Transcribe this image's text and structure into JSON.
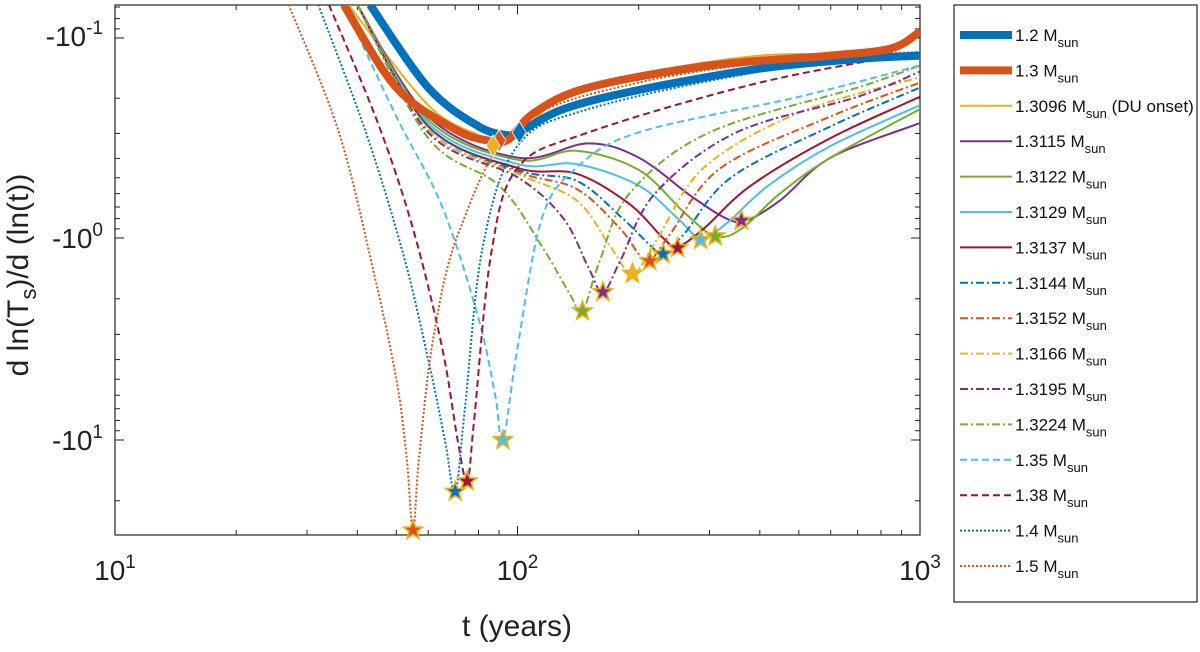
{
  "chart_data": {
    "type": "line",
    "xscale": "log",
    "xlim": [
      10,
      1000
    ],
    "ylabel_scale": "log (negative values)",
    "xlabel": "t (years)",
    "ylabel": "d ln(T_s)/d (ln(t))",
    "xticks": [
      {
        "value": 10,
        "base": "10",
        "exp": "1"
      },
      {
        "value": 100,
        "base": "10",
        "exp": "2"
      },
      {
        "value": 1000,
        "base": "10",
        "exp": "3"
      }
    ],
    "yticks": [
      {
        "value": -0.1,
        "base": "-10",
        "exp": "-1"
      },
      {
        "value": -1,
        "base": "-10",
        "exp": "0"
      },
      {
        "value": -10,
        "base": "-10",
        "exp": "1"
      }
    ],
    "legend_position": "outside-right",
    "series": [
      {
        "name": "1.2 M",
        "sub": "sun",
        "suffix": "",
        "color": "#0072BD",
        "style": "solid",
        "width": 8,
        "points": [
          [
            43,
            -0.07
          ],
          [
            60,
            -0.18
          ],
          [
            80,
            -0.28
          ],
          [
            95,
            -0.31
          ],
          [
            101,
            -0.3
          ],
          [
            130,
            -0.23
          ],
          [
            200,
            -0.185
          ],
          [
            400,
            -0.145
          ],
          [
            700,
            -0.13
          ],
          [
            1000,
            -0.125
          ]
        ],
        "marker": {
          "x": 101,
          "y": -0.3,
          "shape": "diamond",
          "color": "#0072BD"
        }
      },
      {
        "name": "1.3 M",
        "sub": "sun",
        "suffix": "",
        "color": "#D95319",
        "style": "solid",
        "width": 8,
        "points": [
          [
            37,
            -0.07
          ],
          [
            50,
            -0.18
          ],
          [
            70,
            -0.29
          ],
          [
            85,
            -0.33
          ],
          [
            95,
            -0.325
          ],
          [
            110,
            -0.24
          ],
          [
            150,
            -0.18
          ],
          [
            300,
            -0.14
          ],
          [
            600,
            -0.125
          ],
          [
            850,
            -0.115
          ],
          [
            1000,
            -0.095
          ]
        ],
        "marker": {
          "x": 90,
          "y": -0.33,
          "shape": "diamond",
          "color": "#D95319"
        }
      },
      {
        "name": "1.3096 M",
        "sub": "sun",
        "suffix": " (DU onset)",
        "color": "#EDB120",
        "style": "solid",
        "width": 2,
        "points": [
          [
            38,
            -0.07
          ],
          [
            60,
            -0.22
          ],
          [
            80,
            -0.31
          ],
          [
            88,
            -0.34
          ],
          [
            100,
            -0.31
          ],
          [
            130,
            -0.2
          ],
          [
            200,
            -0.155
          ],
          [
            400,
            -0.125
          ],
          [
            700,
            -0.125
          ],
          [
            1000,
            -0.13
          ]
        ],
        "marker": {
          "x": 87,
          "y": -0.35,
          "shape": "diamond",
          "color": "#EDB120"
        }
      },
      {
        "name": "1.3115 M",
        "sub": "sun",
        "suffix": "",
        "color": "#7E2F8E",
        "style": "solid",
        "width": 2,
        "points": [
          [
            40,
            -0.07
          ],
          [
            60,
            -0.25
          ],
          [
            100,
            -0.4
          ],
          [
            150,
            -0.34
          ],
          [
            200,
            -0.4
          ],
          [
            270,
            -0.62
          ],
          [
            330,
            -0.8
          ],
          [
            370,
            -0.82
          ],
          [
            450,
            -0.65
          ],
          [
            600,
            -0.4
          ],
          [
            1000,
            -0.27
          ]
        ],
        "marker": {
          "x": 360,
          "y": -0.82,
          "shape": "star",
          "color": "#7E2F8E"
        }
      },
      {
        "name": "1.3122 M",
        "sub": "sun",
        "suffix": "",
        "color": "#77AC30",
        "style": "solid",
        "width": 2,
        "points": [
          [
            40,
            -0.07
          ],
          [
            60,
            -0.26
          ],
          [
            100,
            -0.41
          ],
          [
            140,
            -0.37
          ],
          [
            200,
            -0.46
          ],
          [
            260,
            -0.75
          ],
          [
            310,
            -0.98
          ],
          [
            360,
            -0.9
          ],
          [
            450,
            -0.6
          ],
          [
            600,
            -0.4
          ],
          [
            1000,
            -0.23
          ]
        ],
        "marker": {
          "x": 310,
          "y": -0.98,
          "shape": "star",
          "color": "#77AC30"
        }
      },
      {
        "name": "1.3129 M",
        "sub": "sun",
        "suffix": "",
        "color": "#4DBEEE",
        "style": "solid",
        "width": 2,
        "points": [
          [
            40,
            -0.07
          ],
          [
            60,
            -0.27
          ],
          [
            100,
            -0.43
          ],
          [
            140,
            -0.43
          ],
          [
            200,
            -0.55
          ],
          [
            250,
            -0.8
          ],
          [
            285,
            -1.0
          ],
          [
            330,
            -0.85
          ],
          [
            420,
            -0.55
          ],
          [
            600,
            -0.35
          ],
          [
            1000,
            -0.22
          ]
        ],
        "marker": {
          "x": 285,
          "y": -1.02,
          "shape": "star",
          "color": "#4DBEEE"
        }
      },
      {
        "name": "1.3137 M",
        "sub": "sun",
        "suffix": "",
        "color": "#A2142F",
        "style": "solid",
        "width": 2,
        "points": [
          [
            40,
            -0.07
          ],
          [
            60,
            -0.28
          ],
          [
            100,
            -0.45
          ],
          [
            140,
            -0.48
          ],
          [
            190,
            -0.68
          ],
          [
            230,
            -1.0
          ],
          [
            250,
            -1.1
          ],
          [
            290,
            -0.9
          ],
          [
            380,
            -0.55
          ],
          [
            600,
            -0.32
          ],
          [
            1000,
            -0.2
          ]
        ],
        "marker": {
          "x": 250,
          "y": -1.12,
          "shape": "star",
          "color": "#A2142F"
        }
      },
      {
        "name": "1.3144 M",
        "sub": "sun",
        "suffix": "",
        "color": "#0072BD",
        "style": "dashdot",
        "width": 2,
        "points": [
          [
            40,
            -0.07
          ],
          [
            60,
            -0.28
          ],
          [
            100,
            -0.46
          ],
          [
            140,
            -0.52
          ],
          [
            180,
            -0.78
          ],
          [
            215,
            -1.1
          ],
          [
            230,
            -1.2
          ],
          [
            260,
            -0.95
          ],
          [
            340,
            -0.5
          ],
          [
            600,
            -0.28
          ],
          [
            1000,
            -0.18
          ]
        ],
        "marker": {
          "x": 230,
          "y": -1.2,
          "shape": "star",
          "color": "#0072BD"
        }
      },
      {
        "name": "1.3152 M",
        "sub": "sun",
        "suffix": "",
        "color": "#D95319",
        "style": "dashdot",
        "width": 2,
        "points": [
          [
            40,
            -0.07
          ],
          [
            60,
            -0.29
          ],
          [
            100,
            -0.47
          ],
          [
            140,
            -0.57
          ],
          [
            180,
            -0.9
          ],
          [
            200,
            -1.2
          ],
          [
            213,
            -1.3
          ],
          [
            240,
            -0.95
          ],
          [
            320,
            -0.45
          ],
          [
            600,
            -0.25
          ],
          [
            1000,
            -0.17
          ]
        ],
        "marker": {
          "x": 213,
          "y": -1.3,
          "shape": "star",
          "color": "#D95319"
        }
      },
      {
        "name": "1.3166 M",
        "sub": "sun",
        "suffix": "",
        "color": "#EDB120",
        "style": "dashdot",
        "width": 2,
        "points": [
          [
            40,
            -0.07
          ],
          [
            60,
            -0.29
          ],
          [
            100,
            -0.48
          ],
          [
            140,
            -0.65
          ],
          [
            170,
            -1.1
          ],
          [
            193,
            -1.5
          ],
          [
            220,
            -1.05
          ],
          [
            290,
            -0.45
          ],
          [
            500,
            -0.24
          ],
          [
            1000,
            -0.16
          ]
        ],
        "marker": {
          "x": 193,
          "y": -1.5,
          "shape": "star",
          "color": "#EDB120"
        }
      },
      {
        "name": "1.3195 M",
        "sub": "sun",
        "suffix": "",
        "color": "#7E2F8E",
        "style": "dashdot",
        "width": 2,
        "points": [
          [
            40,
            -0.07
          ],
          [
            60,
            -0.3
          ],
          [
            100,
            -0.5
          ],
          [
            130,
            -0.8
          ],
          [
            150,
            -1.4
          ],
          [
            163,
            -1.85
          ],
          [
            180,
            -1.3
          ],
          [
            220,
            -0.6
          ],
          [
            350,
            -0.3
          ],
          [
            700,
            -0.2
          ],
          [
            1000,
            -0.15
          ]
        ],
        "marker": {
          "x": 163,
          "y": -1.85,
          "shape": "star",
          "color": "#7E2F8E"
        }
      },
      {
        "name": "1.3224 M",
        "sub": "sun",
        "suffix": "",
        "color": "#77AC30",
        "style": "dashdot",
        "width": 2,
        "points": [
          [
            40,
            -0.07
          ],
          [
            60,
            -0.32
          ],
          [
            90,
            -0.55
          ],
          [
            115,
            -1.1
          ],
          [
            135,
            -1.9
          ],
          [
            145,
            -2.3
          ],
          [
            160,
            -1.3
          ],
          [
            190,
            -0.6
          ],
          [
            300,
            -0.3
          ],
          [
            700,
            -0.18
          ],
          [
            1000,
            -0.14
          ]
        ],
        "marker": {
          "x": 145,
          "y": -2.3,
          "shape": "star",
          "color": "#77AC30"
        }
      },
      {
        "name": "1.35 M",
        "sub": "sun",
        "suffix": "",
        "color": "#4DBEEE",
        "style": "dashed",
        "width": 2,
        "points": [
          [
            37,
            -0.07
          ],
          [
            50,
            -0.25
          ],
          [
            65,
            -0.7
          ],
          [
            80,
            -2.5
          ],
          [
            88,
            -6
          ],
          [
            92,
            -10
          ],
          [
            100,
            -3.5
          ],
          [
            115,
            -0.8
          ],
          [
            140,
            -0.45
          ],
          [
            200,
            -0.3
          ],
          [
            500,
            -0.2
          ],
          [
            1000,
            -0.14
          ]
        ],
        "marker": {
          "x": 92,
          "y": -10,
          "shape": "star",
          "color": "#4DBEEE"
        }
      },
      {
        "name": "1.38 M",
        "sub": "sun",
        "suffix": "",
        "color": "#A2142F",
        "style": "dashed",
        "width": 2,
        "points": [
          [
            34,
            -0.07
          ],
          [
            45,
            -0.27
          ],
          [
            55,
            -0.9
          ],
          [
            65,
            -3.5
          ],
          [
            71,
            -10
          ],
          [
            75,
            -16
          ],
          [
            78,
            -8
          ],
          [
            86,
            -1.2
          ],
          [
            100,
            -0.45
          ],
          [
            150,
            -0.3
          ],
          [
            400,
            -0.17
          ],
          [
            1000,
            -0.12
          ]
        ],
        "marker": {
          "x": 75,
          "y": -16,
          "shape": "star",
          "color": "#A2142F"
        }
      },
      {
        "name": "1.4 M",
        "sub": "sun",
        "suffix": "",
        "color": "#0072BD",
        "style": "dotted",
        "width": 2,
        "points": [
          [
            32,
            -0.07
          ],
          [
            42,
            -0.3
          ],
          [
            52,
            -1.2
          ],
          [
            60,
            -4
          ],
          [
            66,
            -10
          ],
          [
            70,
            -18
          ],
          [
            74,
            -7
          ],
          [
            82,
            -1.1
          ],
          [
            100,
            -0.35
          ],
          [
            150,
            -0.23
          ],
          [
            400,
            -0.15
          ],
          [
            1000,
            -0.12
          ]
        ],
        "marker": {
          "x": 70,
          "y": -18,
          "shape": "star",
          "color": "#0072BD"
        }
      },
      {
        "name": "1.5 M",
        "sub": "sun",
        "suffix": "",
        "color": "#D95319",
        "style": "dotted",
        "width": 2,
        "points": [
          [
            27,
            -0.07
          ],
          [
            36,
            -0.3
          ],
          [
            44,
            -1.5
          ],
          [
            50,
            -5
          ],
          [
            53,
            -12
          ],
          [
            55,
            -28
          ],
          [
            57,
            -12
          ],
          [
            62,
            -3
          ],
          [
            72,
            -0.9
          ],
          [
            100,
            -0.28
          ],
          [
            200,
            -0.17
          ],
          [
            500,
            -0.13
          ],
          [
            1000,
            -0.12
          ]
        ],
        "marker": {
          "x": 55,
          "y": -28,
          "shape": "star",
          "color": "#D95319"
        }
      }
    ]
  }
}
